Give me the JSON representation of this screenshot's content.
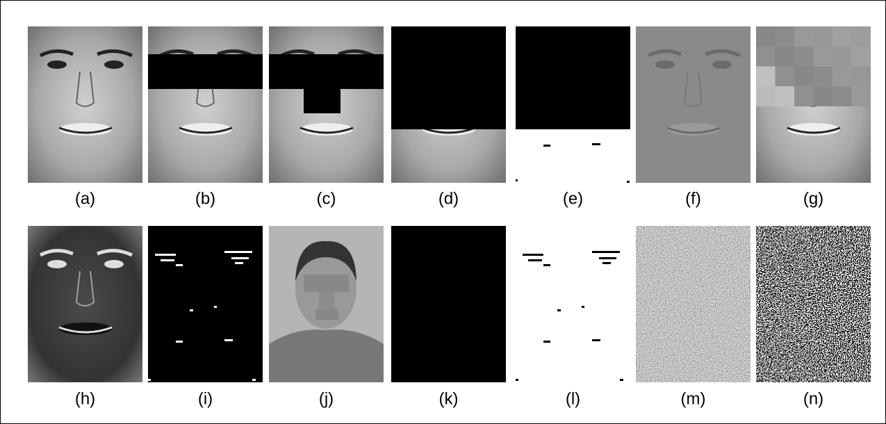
{
  "labels": [
    "(a)",
    "(b)",
    "(c)",
    "(d)",
    "(e)",
    "(f)",
    "(g)",
    "(h)",
    "(i)",
    "(j)",
    "(k)",
    "(l)",
    "(m)",
    "(n)"
  ]
}
